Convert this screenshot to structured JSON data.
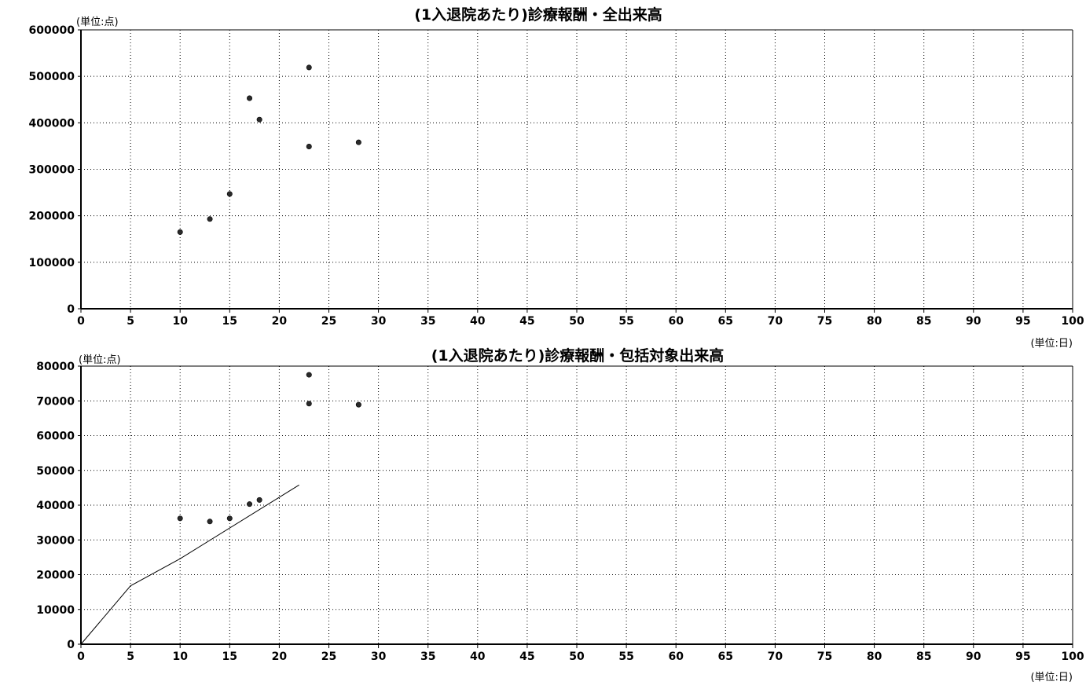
{
  "chart_data": [
    {
      "type": "scatter",
      "title": "(1入退院あたり)診療報酬・全出来高",
      "y_unit": "(単位:点)",
      "x_unit": "(単位:日)",
      "xlim": [
        0,
        100
      ],
      "ylim": [
        0,
        600000
      ],
      "x_ticks": [
        "0",
        "5",
        "10",
        "15",
        "20",
        "25",
        "30",
        "35",
        "40",
        "45",
        "50",
        "55",
        "60",
        "65",
        "70",
        "75",
        "80",
        "85",
        "90",
        "95",
        "100"
      ],
      "y_ticks": [
        "0",
        "100000",
        "200000",
        "300000",
        "400000",
        "500000",
        "600000"
      ],
      "grid": true,
      "series": [
        {
          "points": [
            [
              10,
              165000
            ],
            [
              13,
              193000
            ],
            [
              15,
              247000
            ],
            [
              17,
              453000
            ],
            [
              18,
              407000
            ],
            [
              23,
              519000
            ],
            [
              23,
              349000
            ],
            [
              28,
              358000
            ]
          ]
        }
      ]
    },
    {
      "type": "scatter",
      "title": "(1入退院あたり)診療報酬・包括対象出来高",
      "y_unit": "(単位:点)",
      "x_unit": "(単位:日)",
      "xlim": [
        0,
        100
      ],
      "ylim": [
        0,
        80000
      ],
      "x_ticks": [
        "0",
        "5",
        "10",
        "15",
        "20",
        "25",
        "30",
        "35",
        "40",
        "45",
        "50",
        "55",
        "60",
        "65",
        "70",
        "75",
        "80",
        "85",
        "90",
        "95",
        "100"
      ],
      "y_ticks": [
        "0",
        "10000",
        "20000",
        "30000",
        "40000",
        "50000",
        "60000",
        "70000",
        "80000"
      ],
      "grid": true,
      "series": [
        {
          "points": [
            [
              10,
              36200
            ],
            [
              13,
              35300
            ],
            [
              15,
              36200
            ],
            [
              17,
              40300
            ],
            [
              18,
              41500
            ],
            [
              23,
              77500
            ],
            [
              23,
              69200
            ],
            [
              28,
              68900
            ]
          ]
        }
      ],
      "line": {
        "points": [
          [
            0,
            0
          ],
          [
            5,
            16800
          ],
          [
            10,
            24600
          ],
          [
            22,
            45800
          ]
        ]
      }
    }
  ]
}
